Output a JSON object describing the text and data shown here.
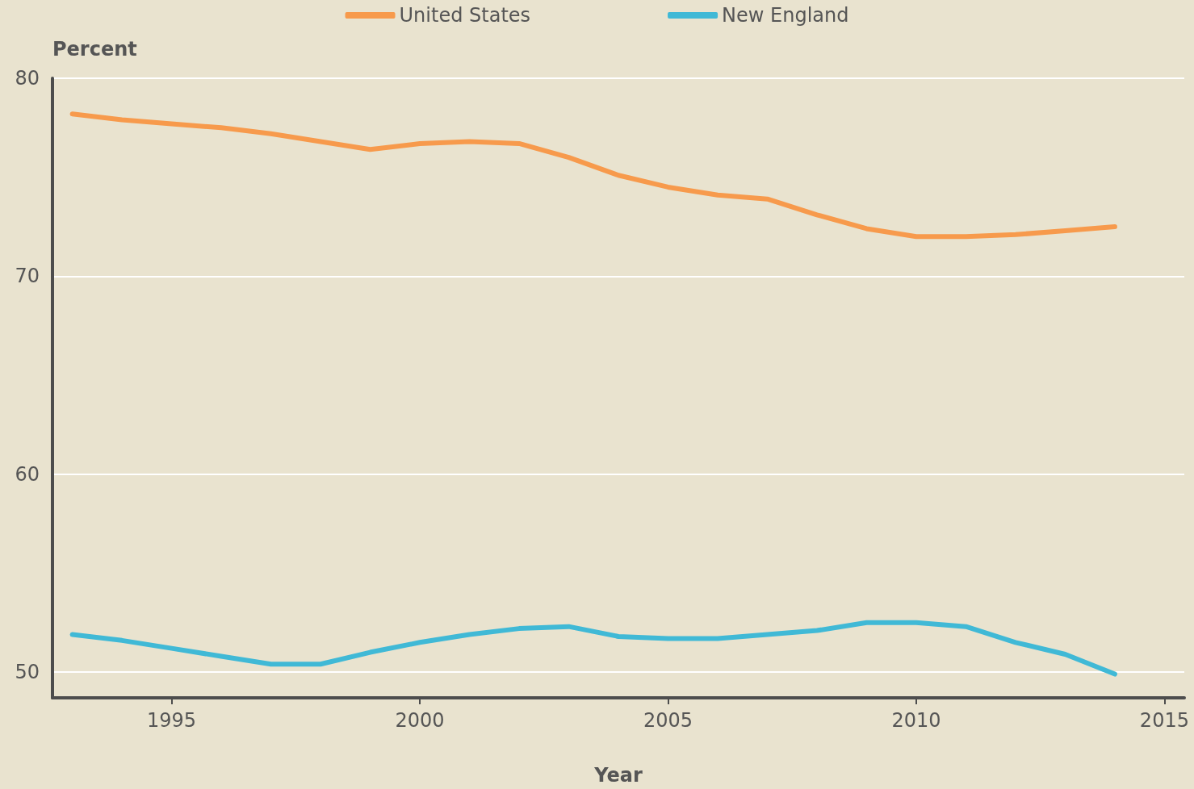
{
  "chart_data": {
    "type": "line",
    "xlabel": "Year",
    "ylabel": "Percent",
    "x": [
      1993,
      1994,
      1995,
      1996,
      1997,
      1998,
      1999,
      2000,
      2001,
      2002,
      2003,
      2004,
      2005,
      2006,
      2007,
      2008,
      2009,
      2010,
      2011,
      2012,
      2013,
      2014
    ],
    "series": [
      {
        "name": "United States",
        "color": "#f79a4c",
        "values": [
          78.2,
          77.9,
          77.7,
          77.5,
          77.2,
          76.8,
          76.4,
          76.7,
          76.8,
          76.7,
          76.0,
          75.1,
          74.5,
          74.1,
          73.9,
          73.1,
          72.4,
          72.0,
          72.0,
          72.1,
          72.3,
          72.5
        ]
      },
      {
        "name": "New England",
        "color": "#40b9d6",
        "values": [
          51.9,
          51.6,
          51.2,
          50.8,
          50.4,
          50.4,
          51.0,
          51.5,
          51.9,
          52.2,
          52.3,
          51.8,
          51.7,
          51.7,
          51.9,
          52.1,
          52.5,
          52.5,
          52.3,
          51.5,
          50.9,
          49.9
        ]
      }
    ],
    "xlim": [
      1992.6,
      2015.4
    ],
    "xticks": [
      1995,
      2000,
      2005,
      2010,
      2015
    ],
    "ylim": [
      48.7,
      80
    ],
    "yticks": [
      50,
      60,
      70,
      80
    ],
    "grid": "y",
    "legend": "top",
    "marker": "none",
    "line_style": "solid"
  }
}
